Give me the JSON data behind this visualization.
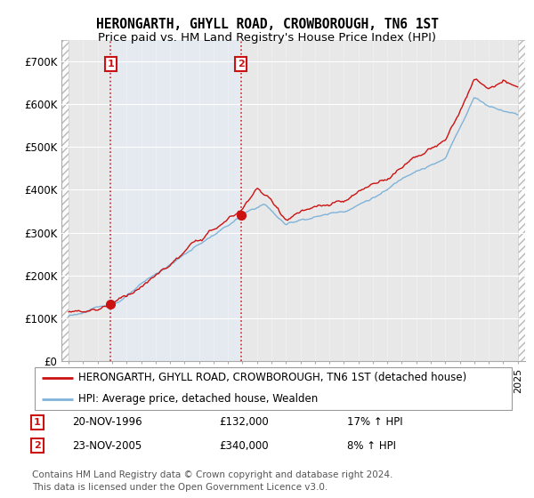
{
  "title_line1": "HERONGARTH, GHYLL ROAD, CROWBOROUGH, TN6 1ST",
  "title_line2": "Price paid vs. HM Land Registry's House Price Index (HPI)",
  "ylim": [
    0,
    750000
  ],
  "yticks": [
    0,
    100000,
    200000,
    300000,
    400000,
    500000,
    600000,
    700000
  ],
  "ytick_labels": [
    "£0",
    "£100K",
    "£200K",
    "£300K",
    "£400K",
    "£500K",
    "£600K",
    "£700K"
  ],
  "xlim_start": 1993.5,
  "xlim_end": 2025.5,
  "background_color": "#ffffff",
  "plot_bg_color": "#e8e8e8",
  "grid_color": "#ffffff",
  "hpi_color": "#7fb3d9",
  "price_color": "#cc1111",
  "highlight_color": "#ddeeff",
  "sale1_x": 1996.896,
  "sale1_y": 132000,
  "sale1_label": "1",
  "sale1_date": "20-NOV-1996",
  "sale1_price": "£132,000",
  "sale1_hpi": "17% ↑ HPI",
  "sale2_x": 2005.896,
  "sale2_y": 340000,
  "sale2_label": "2",
  "sale2_date": "23-NOV-2005",
  "sale2_price": "£340,000",
  "sale2_hpi": "8% ↑ HPI",
  "legend_line1": "HERONGARTH, GHYLL ROAD, CROWBOROUGH, TN6 1ST (detached house)",
  "legend_line2": "HPI: Average price, detached house, Wealden",
  "footer": "Contains HM Land Registry data © Crown copyright and database right 2024.\nThis data is licensed under the Open Government Licence v3.0.",
  "title_fontsize": 10.5,
  "subtitle_fontsize": 9.5,
  "tick_fontsize": 8.5,
  "legend_fontsize": 8.5,
  "footer_fontsize": 7.5
}
